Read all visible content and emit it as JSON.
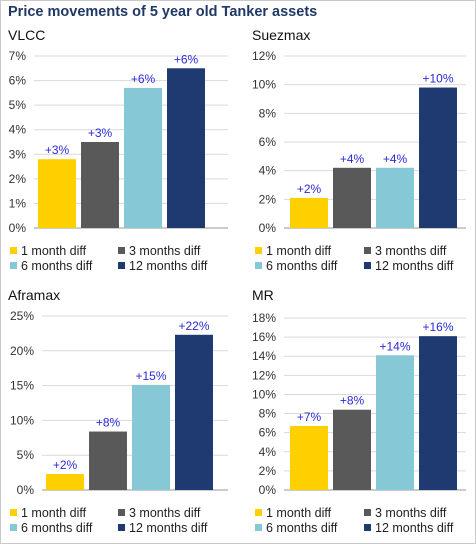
{
  "page_title": "Price movements of 5 year old Tanker assets",
  "colors": {
    "title": "#1f3864",
    "label": "#2b2bd6",
    "series": [
      "#ffd000",
      "#595959",
      "#86c8d6",
      "#1f3a70"
    ]
  },
  "legend_labels": [
    "1 month diff",
    "3 months diff",
    "6 months diff",
    "12 months diff"
  ],
  "chart_data": [
    {
      "type": "bar",
      "title": "VLCC",
      "categories": [
        "1 month diff",
        "3 months diff",
        "6 months diff",
        "12 months diff"
      ],
      "values": [
        2.8,
        3.5,
        5.7,
        6.5
      ],
      "data_labels": [
        "+3%",
        "+3%",
        "+6%",
        "+6%"
      ],
      "yticks": [
        "0%",
        "1%",
        "2%",
        "3%",
        "4%",
        "5%",
        "6%",
        "7%"
      ],
      "ylim": [
        0,
        7
      ],
      "grid": true,
      "legend_position": "bottom"
    },
    {
      "type": "bar",
      "title": "Suezmax",
      "categories": [
        "1 month diff",
        "3 months diff",
        "6 months diff",
        "12 months diff"
      ],
      "values": [
        2.1,
        4.2,
        4.2,
        9.8
      ],
      "data_labels": [
        "+2%",
        "+4%",
        "+4%",
        "+10%"
      ],
      "yticks": [
        "0%",
        "2%",
        "4%",
        "6%",
        "8%",
        "10%",
        "12%"
      ],
      "ylim": [
        0,
        12
      ],
      "grid": true,
      "legend_position": "bottom"
    },
    {
      "type": "bar",
      "title": "Aframax",
      "categories": [
        "1 month diff",
        "3 months diff",
        "6 months diff",
        "12 months diff"
      ],
      "values": [
        2.3,
        8.4,
        15.1,
        22.3
      ],
      "data_labels": [
        "+2%",
        "+8%",
        "+15%",
        "+22%"
      ],
      "yticks": [
        "0%",
        "5%",
        "10%",
        "15%",
        "20%",
        "25%"
      ],
      "ylim": [
        0,
        25
      ],
      "grid": true,
      "legend_position": "bottom"
    },
    {
      "type": "bar",
      "title": "MR",
      "categories": [
        "1 month diff",
        "3 months diff",
        "6 months diff",
        "12 months diff"
      ],
      "values": [
        6.7,
        8.4,
        14.1,
        16.1
      ],
      "data_labels": [
        "+7%",
        "+8%",
        "+14%",
        "+16%"
      ],
      "yticks": [
        "0%",
        "2%",
        "4%",
        "6%",
        "8%",
        "10%",
        "12%",
        "14%",
        "16%",
        "18%"
      ],
      "ylim": [
        0,
        18
      ],
      "grid": true,
      "legend_position": "bottom"
    }
  ]
}
